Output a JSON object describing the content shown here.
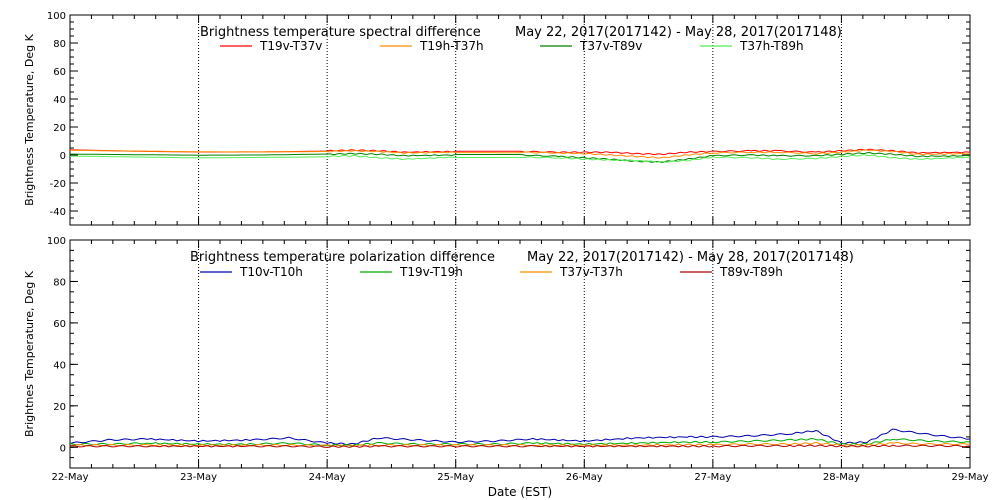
{
  "chart_data": [
    {
      "type": "line",
      "title": "Brightness temperature spectral difference",
      "date_range": "May 22, 2017(2017142) - May 28, 2017(2017148)",
      "ylabel": "Brightness Temperature, Deg K",
      "ylim": [
        -50,
        100
      ],
      "yticks": [
        -40,
        -20,
        0,
        20,
        40,
        60,
        80,
        100
      ],
      "xlim": [
        "2017-05-22",
        "2017-05-29"
      ],
      "grid": true,
      "legend_placement": "top",
      "x_days": [
        22,
        22.5,
        23,
        23.5,
        24,
        24.2,
        24.4,
        24.6,
        25,
        25.5,
        25.8,
        26,
        26.2,
        26.4,
        26.6,
        26.8,
        27,
        27.3,
        27.5,
        27.8,
        28,
        28.2,
        28.4,
        28.6,
        29
      ],
      "series": [
        {
          "name": "T19v-T37v",
          "color": "#ff0000",
          "values": [
            4,
            3,
            2.5,
            2.5,
            3,
            3.5,
            3,
            2,
            2.5,
            2.5,
            2,
            2,
            2,
            1,
            0.5,
            2,
            2.5,
            3,
            3,
            2,
            3,
            4,
            3,
            1.5,
            2
          ]
        },
        {
          "name": "T19h-T37h",
          "color": "#ff8c00",
          "values": [
            3,
            2.5,
            2,
            2,
            2.5,
            3,
            2.5,
            1.5,
            2,
            2,
            1.5,
            1,
            0,
            -1,
            -2,
            0,
            1.5,
            2,
            2,
            1,
            2,
            3.5,
            2.5,
            0.5,
            1
          ]
        },
        {
          "name": "T37v-T89v",
          "color": "#008000",
          "values": [
            1,
            0.5,
            0,
            0,
            0.5,
            1,
            0.5,
            -0.5,
            0,
            0,
            -1,
            -2,
            -3,
            -4.5,
            -5,
            -3,
            -0.5,
            0,
            -0.5,
            -0.5,
            0.5,
            1.5,
            0.5,
            -1,
            -0.5
          ]
        },
        {
          "name": "T37h-T89h",
          "color": "#55ee55",
          "values": [
            -1,
            -1.5,
            -2,
            -1.5,
            -1,
            -0.5,
            -2,
            -3,
            -1.5,
            -1.5,
            -2,
            -3,
            -3.5,
            -4,
            -5,
            -4,
            -1.5,
            -2,
            -3,
            -2.5,
            -1,
            0,
            -2,
            -3,
            -1.5
          ]
        }
      ]
    },
    {
      "type": "line",
      "title": "Brightness temperature polarization difference",
      "date_range": "May 22, 2017(2017142) - May 28, 2017(2017148)",
      "ylabel": "Brightnes Temperature, Deg K",
      "xlabel": "Date (EST)",
      "ylim": [
        -10,
        100
      ],
      "yticks": [
        0,
        20,
        40,
        60,
        80,
        100
      ],
      "xlim": [
        "2017-05-22",
        "2017-05-29"
      ],
      "xticks": [
        "22-May",
        "23-May",
        "24-May",
        "25-May",
        "26-May",
        "27-May",
        "28-May",
        "29-May"
      ],
      "grid": true,
      "legend_placement": "top",
      "x_days": [
        22,
        22.3,
        22.6,
        23,
        23.4,
        23.7,
        24,
        24.2,
        24.4,
        24.7,
        25,
        25.3,
        25.6,
        26,
        26.4,
        26.8,
        27,
        27.3,
        27.6,
        27.8,
        28,
        28.2,
        28.4,
        28.7,
        29
      ],
      "series": [
        {
          "name": "T10v-T10h",
          "color": "#0000aa",
          "values": [
            2,
            3.5,
            4,
            3,
            3.5,
            4.5,
            2,
            1.5,
            4.5,
            3.5,
            2.5,
            3,
            4,
            3,
            4.5,
            5,
            5,
            5.5,
            6.5,
            8,
            2,
            2.5,
            8.5,
            6,
            4
          ]
        },
        {
          "name": "T19v-T19h",
          "color": "#00aa00",
          "values": [
            1.5,
            1.5,
            2,
            1.5,
            1.5,
            2,
            1,
            1,
            2,
            1.5,
            1.5,
            1.5,
            2,
            1.5,
            2,
            2.5,
            2.5,
            3,
            3.5,
            4,
            1.5,
            1.5,
            4,
            3,
            2.5
          ]
        },
        {
          "name": "T37v-T37h",
          "color": "#ff8c00",
          "values": [
            1,
            1,
            1,
            1,
            1,
            1,
            0.8,
            0.8,
            1,
            1,
            1,
            1,
            1,
            1,
            1,
            1.2,
            1.2,
            1.5,
            1.5,
            2,
            1,
            1,
            2,
            1.5,
            1.5
          ]
        },
        {
          "name": "T89v-T89h",
          "color": "#aa0000",
          "values": [
            0.5,
            0.5,
            0.5,
            0.5,
            0.5,
            0.5,
            0.3,
            0.3,
            0.5,
            0.5,
            0.5,
            0.5,
            0.5,
            0.5,
            0.5,
            0.5,
            0.5,
            0.7,
            0.7,
            0.8,
            0.5,
            0.5,
            0.8,
            0.7,
            0.6
          ]
        }
      ]
    }
  ]
}
